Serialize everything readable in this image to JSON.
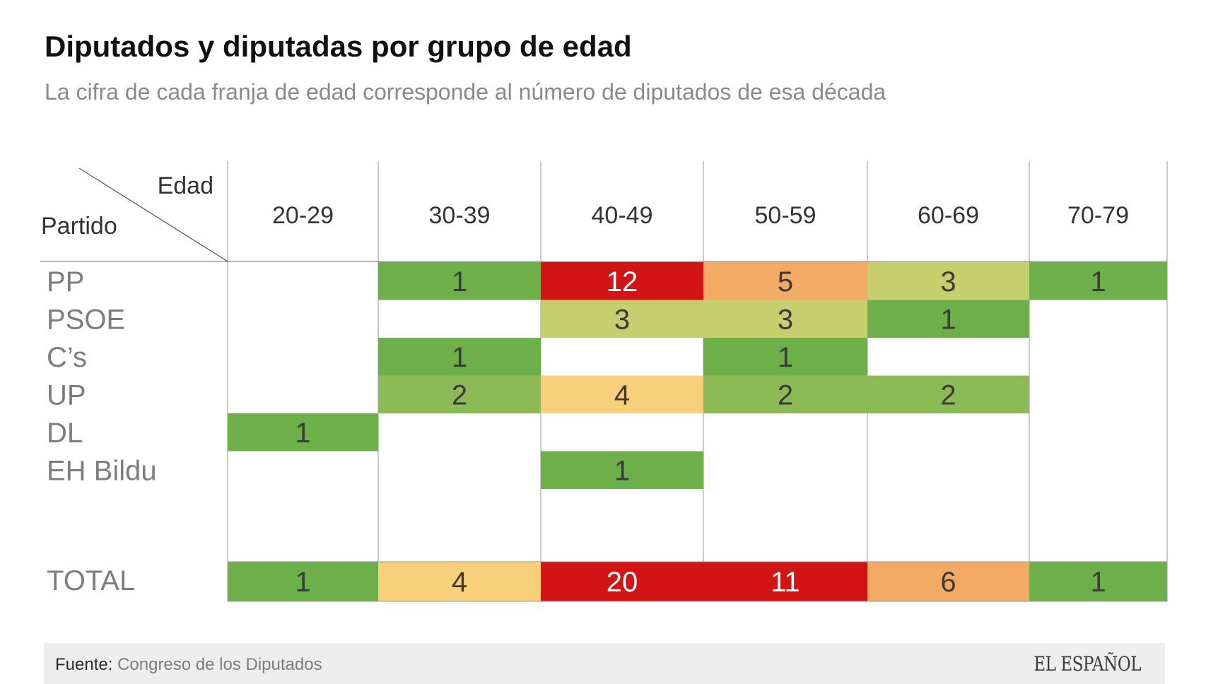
{
  "header": {
    "title": "Diputados y diputadas por grupo de edad",
    "subtitle": "La cifra de cada franja de edad corresponde al número de diputados de esa década"
  },
  "chart_data": {
    "type": "heatmap",
    "corner_labels": {
      "columns": "Edad",
      "rows": "Partido"
    },
    "columns": [
      "20-29",
      "30-39",
      "40-49",
      "50-59",
      "60-69",
      "70-79"
    ],
    "rows": [
      {
        "name": "PP",
        "values": [
          null,
          1,
          12,
          5,
          3,
          1
        ]
      },
      {
        "name": "PSOE",
        "values": [
          null,
          null,
          3,
          3,
          1,
          null
        ]
      },
      {
        "name": "C’s",
        "values": [
          null,
          1,
          null,
          1,
          null,
          null
        ]
      },
      {
        "name": "UP",
        "values": [
          null,
          2,
          4,
          2,
          2,
          null
        ]
      },
      {
        "name": "DL",
        "values": [
          1,
          null,
          null,
          null,
          null,
          null
        ]
      },
      {
        "name": "EH Bildu",
        "values": [
          null,
          null,
          1,
          null,
          null,
          null
        ]
      }
    ],
    "total": {
      "name": "TOTAL",
      "values": [
        1,
        4,
        20,
        11,
        6,
        1
      ]
    },
    "color_scale": [
      {
        "value": 1,
        "color": "#6db04a"
      },
      {
        "value": 2,
        "color": "#8cbb55"
      },
      {
        "value": 3,
        "color": "#c6ce6e"
      },
      {
        "value": 4,
        "color": "#f8cf7b"
      },
      {
        "value": 5,
        "color": "#f2aa64"
      },
      {
        "value": 6,
        "color": "#f2aa64"
      },
      {
        "value": 11,
        "color": "#d21414"
      },
      {
        "value": 12,
        "color": "#d21414"
      },
      {
        "value": 20,
        "color": "#d21414"
      }
    ]
  },
  "footer": {
    "source_label": "Fuente:",
    "source_value": "Congreso de los Diputados",
    "logo": "EL ESPAÑOL"
  }
}
